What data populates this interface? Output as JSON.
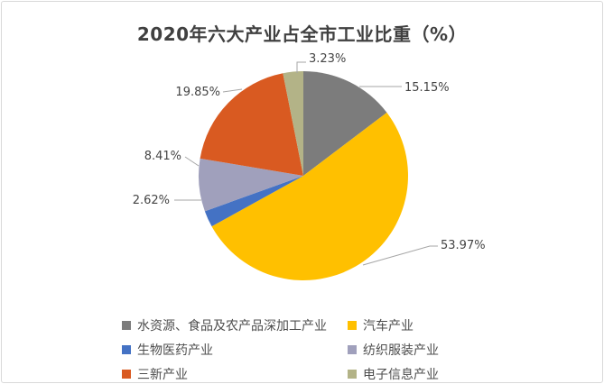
{
  "chart_data": {
    "type": "pie",
    "title": "2020年六大产业占全市工业比重（%）",
    "legend_position": "bottom",
    "label_style": "outside percentage labels with gray leader lines",
    "start_angle_deg": 0,
    "direction": "clockwise",
    "series": [
      {
        "name": "水资源、食品及农产品深加工产业",
        "value": 15.15,
        "label": "15.15%",
        "color": "#7c7c7c"
      },
      {
        "name": "汽车产业",
        "value": 53.97,
        "label": "53.97%",
        "color": "#ffc000"
      },
      {
        "name": "生物医药产业",
        "value": 2.62,
        "label": "2.62%",
        "color": "#4472c4"
      },
      {
        "name": "纺织服装产业",
        "value": 8.41,
        "label": "8.41%",
        "color": "#a0a0bc"
      },
      {
        "name": "三新产业",
        "value": 19.85,
        "label": "19.85%",
        "color": "#d95a21"
      },
      {
        "name": "电子信息产业",
        "value": 3.23,
        "label": "3.23%",
        "color": "#b3b387"
      }
    ],
    "colors": {
      "title_text": "#404040",
      "label_text": "#444444",
      "legend_text": "#4d4d4d",
      "leader_line": "#a6a6a6",
      "frame_border": "#d9d9d9",
      "background": "#ffffff"
    }
  }
}
